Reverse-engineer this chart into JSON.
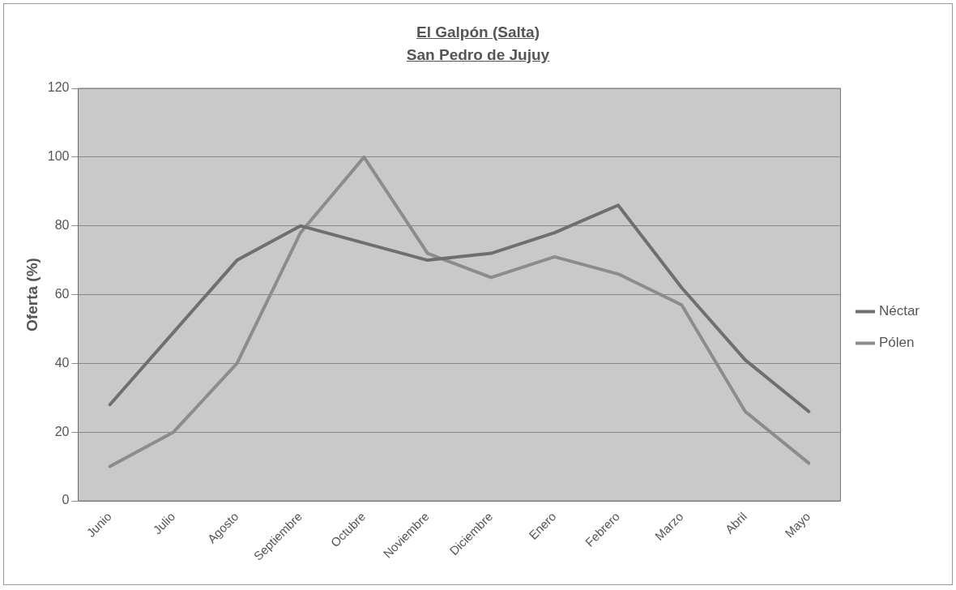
{
  "chart_data": {
    "type": "line",
    "title": "El Galpón (Salta)",
    "subtitle": "San Pedro de Jujuy",
    "ylabel": "Oferta (%)",
    "categories": [
      "Junio",
      "Julio",
      "Agosto",
      "Septiembre",
      "Octubre",
      "Noviembre",
      "Diciembre",
      "Enero",
      "Febrero",
      "Marzo",
      "Abril",
      "Mayo"
    ],
    "series": [
      {
        "name": "Néctar",
        "color": "#6f6f6f",
        "values": [
          28,
          49,
          70,
          80,
          75,
          70,
          72,
          78,
          86,
          62,
          41,
          26
        ]
      },
      {
        "name": "Pólen",
        "color": "#8c8c8c",
        "values": [
          10,
          20,
          40,
          78,
          100,
          72,
          65,
          71,
          66,
          57,
          26,
          11
        ]
      }
    ],
    "ylim": [
      0,
      120
    ],
    "yticks": [
      0,
      20,
      40,
      60,
      80,
      100,
      120
    ],
    "grid": "y",
    "legend": "right",
    "marker": "none",
    "line_style": "solid"
  }
}
